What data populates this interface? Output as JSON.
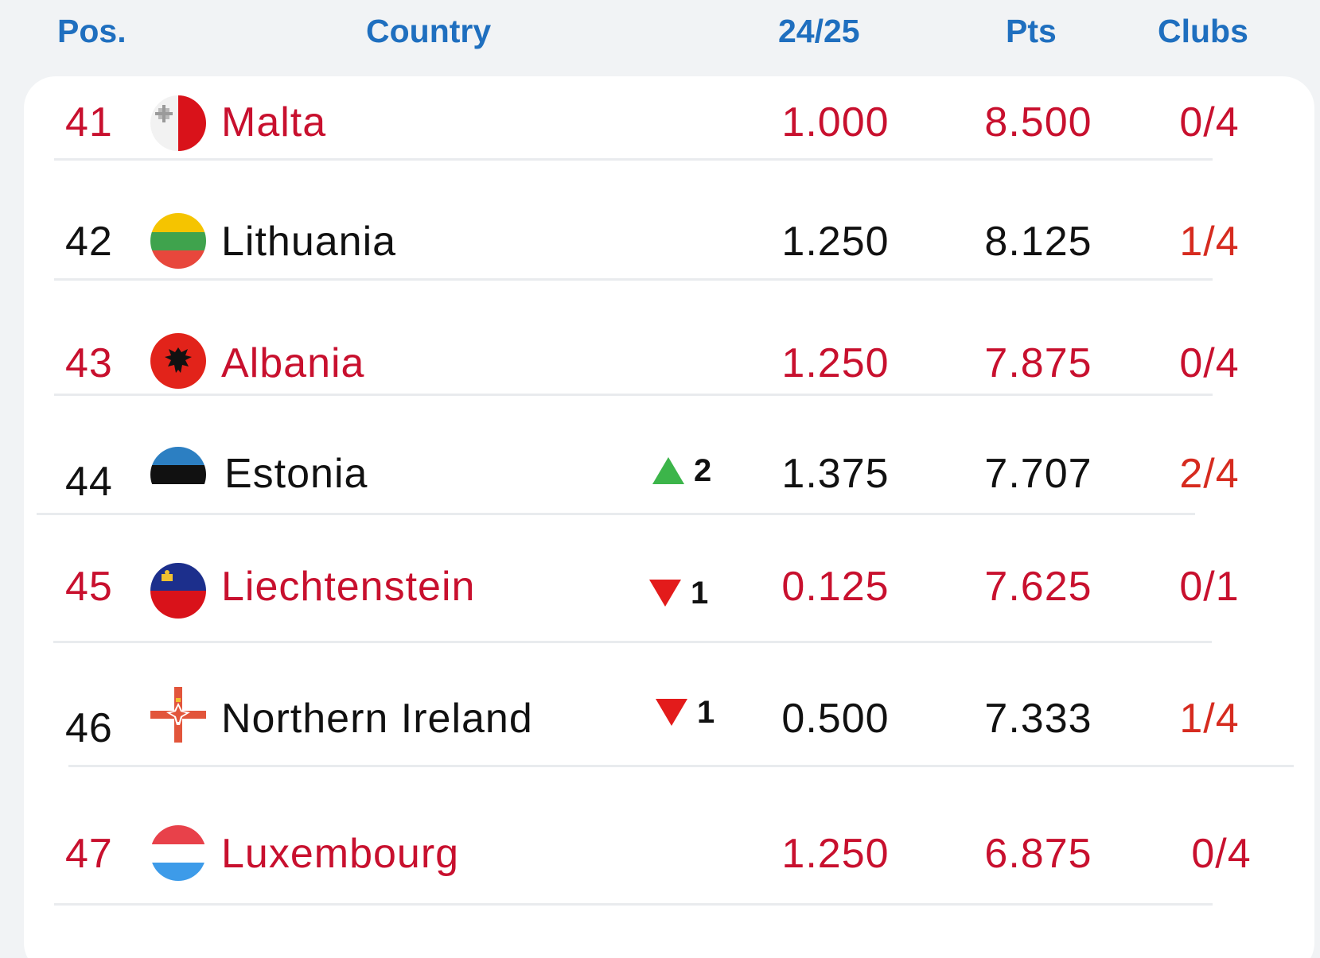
{
  "colors": {
    "header": "#1f6fbf",
    "highlight": "#c8102e",
    "normal": "#111111",
    "clubs": "#d62b1f",
    "up": "#3cb54a",
    "down": "#e31b1b"
  },
  "header": {
    "pos": "Pos.",
    "country": "Country",
    "season": "24/25",
    "pts": "Pts",
    "clubs": "Clubs"
  },
  "rows": [
    {
      "pos": "41",
      "country": "Malta",
      "flag": "malta-flag-icon",
      "season": "1.000",
      "pts": "8.500",
      "clubs": "0/4",
      "highlight": true,
      "change": null
    },
    {
      "pos": "42",
      "country": "Lithuania",
      "flag": "lithuania-flag-icon",
      "season": "1.250",
      "pts": "8.125",
      "clubs": "1/4",
      "highlight": false,
      "change": null
    },
    {
      "pos": "43",
      "country": "Albania",
      "flag": "albania-flag-icon",
      "season": "1.250",
      "pts": "7.875",
      "clubs": "0/4",
      "highlight": true,
      "change": null
    },
    {
      "pos": "44",
      "country": "Estonia",
      "flag": "estonia-flag-icon",
      "season": "1.375",
      "pts": "7.707",
      "clubs": "2/4",
      "highlight": false,
      "change": {
        "direction": "up",
        "value": "2"
      }
    },
    {
      "pos": "45",
      "country": "Liechtenstein",
      "flag": "liechtenstein-flag-icon",
      "season": "0.125",
      "pts": "7.625",
      "clubs": "0/1",
      "highlight": true,
      "change": {
        "direction": "down",
        "value": "1"
      }
    },
    {
      "pos": "46",
      "country": "Northern Ireland",
      "flag": "northern-ireland-flag-icon",
      "season": "0.500",
      "pts": "7.333",
      "clubs": "1/4",
      "highlight": false,
      "change": {
        "direction": "down",
        "value": "1"
      }
    },
    {
      "pos": "47",
      "country": "Luxembourg",
      "flag": "luxembourg-flag-icon",
      "season": "1.250",
      "pts": "6.875",
      "clubs": "0/4",
      "highlight": true,
      "change": null
    }
  ]
}
